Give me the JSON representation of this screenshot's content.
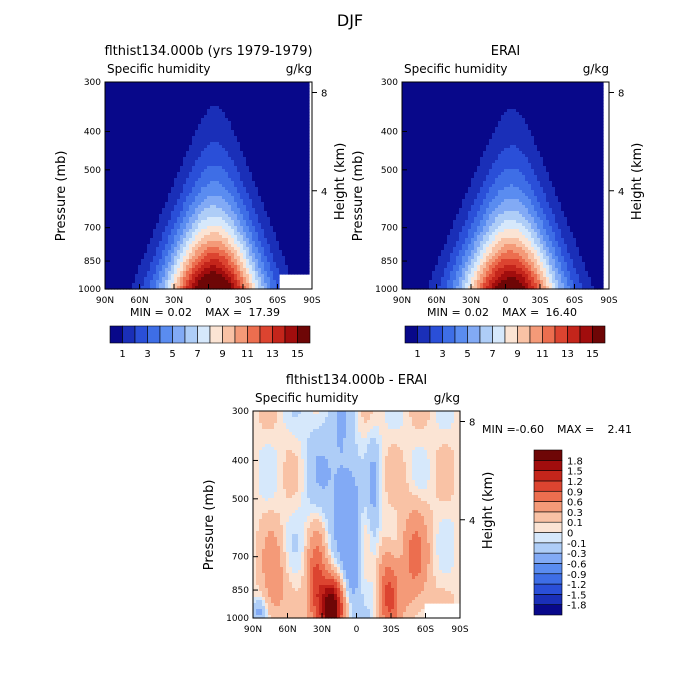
{
  "figure_title": "DJF",
  "chart_data": [
    {
      "type": "contour",
      "title": "flthist134.000b (yrs 1979-1979)",
      "left_string": "Specific humidity",
      "right_string": "g/kg",
      "ylabel": "Pressure (mb)",
      "ylabel_right": "Height (km)",
      "x_ticks": [
        "90N",
        "60N",
        "30N",
        "0",
        "30S",
        "60S",
        "90S"
      ],
      "y_ticks": [
        "300",
        "400",
        "500",
        "700",
        "850",
        "1000"
      ],
      "y_ticks_right": [
        "8",
        "4"
      ],
      "stats": {
        "min_label": "MIN =",
        "min": "0.02",
        "max_label": "MAX =",
        "max": "17.39"
      },
      "field": {
        "kind": "humidity",
        "peak_lat": -4,
        "peak_value": 17.39,
        "spread_lat": 34,
        "top_lat": -6,
        "min_value": 0.02,
        "blank_regions": [
          {
            "lat_from": -61,
            "lat_to": -90,
            "p_from": 920,
            "p_to": 1000
          },
          {
            "lat_from": -88,
            "lat_to": -90,
            "p_from": 300,
            "p_to": 1000
          }
        ]
      },
      "colorbar": {
        "orientation": "horizontal",
        "levels": [
          1,
          2,
          3,
          4,
          5,
          6,
          7,
          8,
          9,
          10,
          11,
          12,
          13,
          14,
          15
        ],
        "labels": [
          "1",
          "3",
          "5",
          "7",
          "9",
          "11",
          "13",
          "15"
        ]
      }
    },
    {
      "type": "contour",
      "title": "ERAI",
      "left_string": "Specific humidity",
      "right_string": "g/kg",
      "ylabel": "Pressure (mb)",
      "ylabel_right": "Height (km)",
      "x_ticks": [
        "90N",
        "60N",
        "30N",
        "0",
        "30S",
        "60S",
        "90S"
      ],
      "y_ticks": [
        "300",
        "400",
        "500",
        "700",
        "850",
        "1000"
      ],
      "y_ticks_right": [
        "8",
        "4"
      ],
      "stats": {
        "min_label": "MIN =",
        "min": "0.02",
        "max_label": "MAX =",
        "max": "16.40"
      },
      "field": {
        "kind": "humidity",
        "peak_lat": -4,
        "peak_value": 16.4,
        "spread_lat": 35,
        "top_lat": -6,
        "min_value": 0.02,
        "blank_regions": [
          {
            "lat_from": -86,
            "lat_to": -90,
            "p_from": 300,
            "p_to": 1000
          }
        ]
      },
      "colorbar": {
        "orientation": "horizontal",
        "levels": [
          1,
          2,
          3,
          4,
          5,
          6,
          7,
          8,
          9,
          10,
          11,
          12,
          13,
          14,
          15
        ],
        "labels": [
          "1",
          "3",
          "5",
          "7",
          "9",
          "11",
          "13",
          "15"
        ]
      }
    },
    {
      "type": "contour",
      "title": "flthist134.000b - ERAI",
      "left_string": "Specific humidity",
      "right_string": "g/kg",
      "ylabel": "Pressure (mb)",
      "ylabel_right": "Height (km)",
      "x_ticks": [
        "90N",
        "60N",
        "30N",
        "0",
        "30S",
        "60S",
        "90S"
      ],
      "y_ticks": [
        "300",
        "400",
        "500",
        "700",
        "850",
        "1000"
      ],
      "y_ticks_right": [
        "8",
        "4"
      ],
      "stats": {
        "min_label": "MIN =",
        "min": "-0.60",
        "max_label": "MAX =",
        "max": "2.41"
      },
      "field": {
        "kind": "difference",
        "min_value": -0.6,
        "max_value": 2.41,
        "blank_regions": [
          {
            "lat_from": -60,
            "lat_to": -90,
            "p_from": 920,
            "p_to": 1000
          }
        ]
      },
      "colorbar": {
        "orientation": "vertical",
        "levels": [
          -1.8,
          -1.5,
          -1.2,
          -0.9,
          -0.6,
          -0.3,
          -0.1,
          0,
          0.1,
          0.3,
          0.6,
          0.9,
          1.2,
          1.5,
          1.8
        ],
        "labels": [
          "-1.8",
          "-1.5",
          "-1.2",
          "-0.9",
          "-0.6",
          "-0.3",
          "-0.1",
          "0",
          "0.1",
          "0.3",
          "0.6",
          "0.9",
          "1.2",
          "1.5",
          "1.8"
        ]
      }
    }
  ],
  "colors": {
    "palette": [
      "#08088a",
      "#1a2fb8",
      "#2a4fd8",
      "#3e6ee6",
      "#5a8cf0",
      "#82aaf5",
      "#aecdf7",
      "#d6e8fb",
      "#fbe4d4",
      "#f9c2a5",
      "#f49a78",
      "#ec6e4f",
      "#dc4430",
      "#c4251b",
      "#a10d0d",
      "#6e0606"
    ]
  }
}
